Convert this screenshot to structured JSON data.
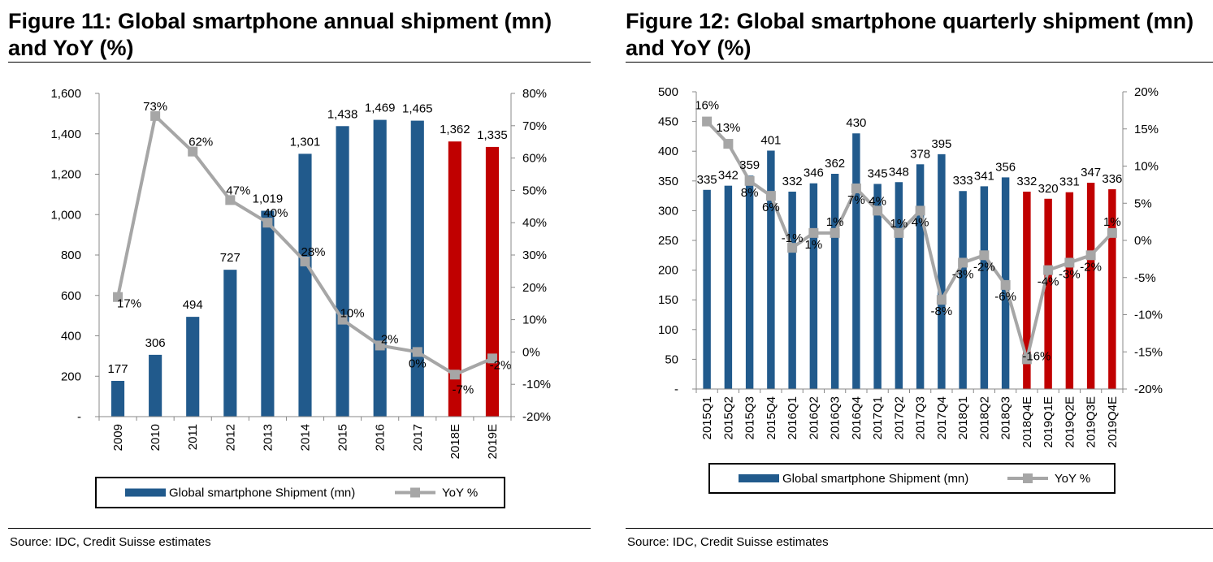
{
  "figures": [
    {
      "title": "Figure 11: Global smartphone annual shipment (mn) and YoY (%)",
      "source": "Source: IDC, Credit Suisse estimates"
    },
    {
      "title": "Figure 12: Global smartphone quarterly shipment (mn) and YoY (%)",
      "source": "Source: IDC, Credit Suisse estimates"
    }
  ],
  "colors": {
    "actual": "#215A8C",
    "estimate": "#C00000",
    "yoy": "#A6A6A6"
  },
  "chart_data": [
    {
      "type": "bar",
      "combo_line": true,
      "categories": [
        "2009",
        "2010",
        "2011",
        "2012",
        "2013",
        "2014",
        "2015",
        "2016",
        "2017",
        "2018E",
        "2019E"
      ],
      "series": [
        {
          "name": "Global smartphone Shipment (mn)",
          "type": "bar",
          "axis": "left",
          "values": [
            177,
            306,
            494,
            727,
            1019,
            1301,
            1438,
            1469,
            1465,
            1362,
            1335
          ],
          "labels": [
            "177",
            "306",
            "494",
            "727",
            "1,019",
            "1,301",
            "1,438",
            "1,469",
            "1,465",
            "1,362",
            "1,335"
          ],
          "estimate_from_index": 9
        },
        {
          "name": "YoY %",
          "type": "line",
          "axis": "right",
          "values": [
            17,
            73,
            62,
            47,
            40,
            28,
            10,
            2,
            0,
            -7,
            -2
          ],
          "labels": [
            "17%",
            "73%",
            "62%",
            "47%",
            "40%",
            "28%",
            "10%",
            "2%",
            "0%",
            "-7%",
            "-2%"
          ]
        }
      ],
      "left_axis": {
        "ylim": [
          0,
          1600
        ],
        "ticks": [
          "-",
          "200",
          "400",
          "600",
          "800",
          "1,000",
          "1,200",
          "1,400",
          "1,600"
        ]
      },
      "right_axis": {
        "ylim": [
          -20,
          80
        ],
        "ticks": [
          "-20%",
          "-10%",
          "0%",
          "10%",
          "20%",
          "30%",
          "40%",
          "50%",
          "60%",
          "70%",
          "80%"
        ]
      },
      "legend": [
        "Global smartphone Shipment (mn)",
        "YoY %"
      ],
      "legend_position": "bottom"
    },
    {
      "type": "bar",
      "combo_line": true,
      "categories": [
        "2015Q1",
        "2015Q2",
        "2015Q3",
        "2015Q4",
        "2016Q1",
        "2016Q2",
        "2016Q3",
        "2016Q4",
        "2017Q1",
        "2017Q2",
        "2017Q3",
        "2017Q4",
        "2018Q1",
        "2018Q2",
        "2018Q3",
        "2018Q4E",
        "2019Q1E",
        "2019Q2E",
        "2019Q3E",
        "2019Q4E"
      ],
      "series": [
        {
          "name": "Global smartphone Shipment (mn)",
          "type": "bar",
          "axis": "left",
          "values": [
            335,
            342,
            359,
            401,
            332,
            346,
            362,
            430,
            345,
            348,
            378,
            395,
            333,
            341,
            356,
            332,
            320,
            331,
            347,
            336
          ],
          "labels": [
            "335",
            "342",
            "359",
            "401",
            "332",
            "346",
            "362",
            "430",
            "345",
            "348",
            "378",
            "395",
            "333",
            "341",
            "356",
            "332",
            "320",
            "331",
            "347",
            "336"
          ],
          "estimate_from_index": 15
        },
        {
          "name": "YoY %",
          "type": "line",
          "axis": "right",
          "values": [
            16,
            13,
            8,
            6,
            -1,
            1,
            1,
            7,
            4,
            1,
            4,
            -8,
            -3,
            -2,
            -6,
            -16,
            -4,
            -3,
            -2,
            1
          ],
          "labels": [
            "16%",
            "13%",
            "8%",
            "6%",
            "-1%",
            "1%",
            "1%",
            "7%",
            "4%",
            "1%",
            "4%",
            "-8%",
            "-3%",
            "-2%",
            "-6%",
            "-16%",
            "-4%",
            "-3%",
            "-2%",
            "1%"
          ]
        }
      ],
      "left_axis": {
        "ylim": [
          0,
          500
        ],
        "ticks": [
          "-",
          "50",
          "100",
          "150",
          "200",
          "250",
          "300",
          "350",
          "400",
          "450",
          "500"
        ]
      },
      "right_axis": {
        "ylim": [
          -20,
          20
        ],
        "ticks": [
          "-20%",
          "-15%",
          "-10%",
          "-5%",
          "0%",
          "5%",
          "10%",
          "15%",
          "20%"
        ]
      },
      "legend": [
        "Global smartphone Shipment (mn)",
        "YoY %"
      ],
      "legend_position": "bottom"
    }
  ]
}
